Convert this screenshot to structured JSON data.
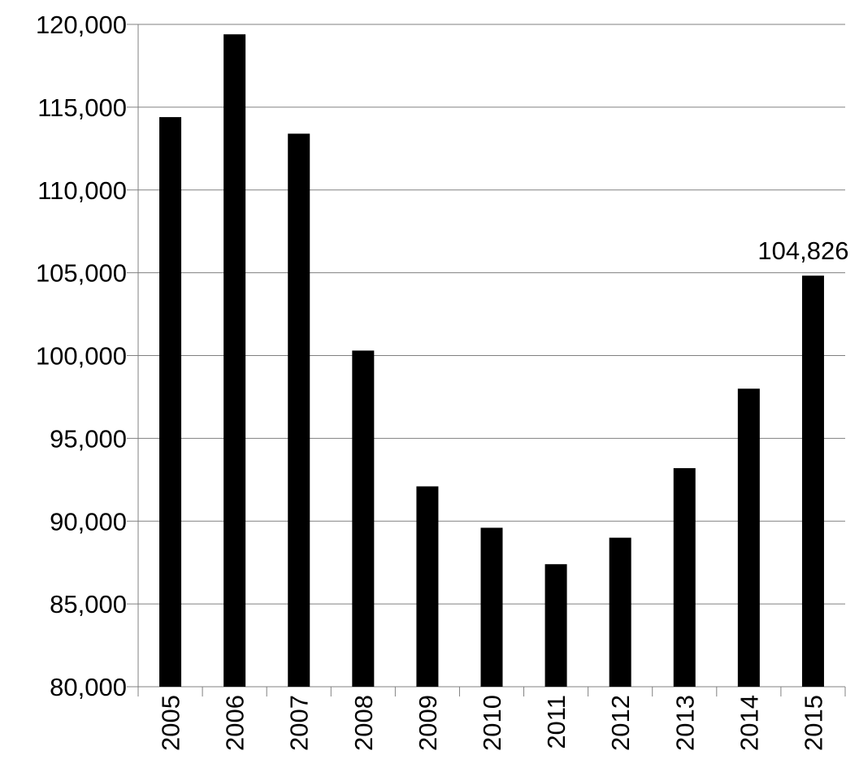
{
  "chart_data": {
    "type": "bar",
    "title": "",
    "xlabel": "",
    "ylabel": "",
    "categories": [
      "2005",
      "2006",
      "2007",
      "2008",
      "2009",
      "2010",
      "2011",
      "2012",
      "2013",
      "2014",
      "2015"
    ],
    "values": [
      114400,
      119400,
      113400,
      100300,
      92100,
      89600,
      87400,
      89000,
      93200,
      98000,
      104826
    ],
    "ylim": [
      80000,
      120000
    ],
    "y_ticks": [
      80000,
      85000,
      90000,
      95000,
      100000,
      105000,
      110000,
      115000,
      120000
    ],
    "y_tick_labels": [
      "80,000",
      "85,000",
      "90,000",
      "95,000",
      "100,000",
      "105,000",
      "110,000",
      "115,000",
      "120,000"
    ],
    "data_labels": [
      {
        "category": "2015",
        "text": "104,826"
      }
    ],
    "grid": true,
    "legend": "none",
    "bar_color": "#000000",
    "gridline_color": "#808080",
    "x_tick_rotation": "vertical"
  }
}
